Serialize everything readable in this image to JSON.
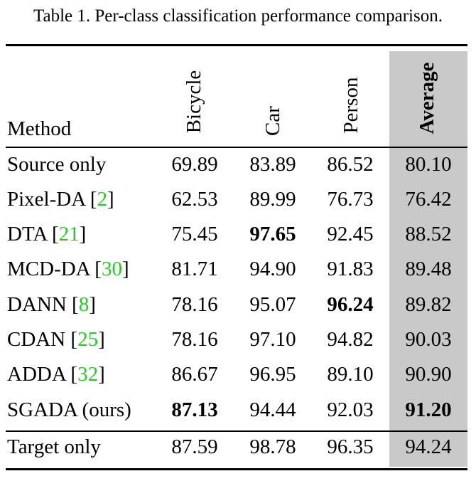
{
  "caption": "Table 1. Per-class classification performance comparison.",
  "headers": {
    "method": "Method",
    "bicycle": "Bicycle",
    "car": "Car",
    "person": "Person",
    "average": "Average"
  },
  "rows": [
    {
      "name": "Source only",
      "ref": "",
      "bicycle": "69.89",
      "car": "83.89",
      "person": "86.52",
      "average": "80.10"
    },
    {
      "name": "Pixel-DA",
      "ref": "2",
      "bicycle": "62.53",
      "car": "89.99",
      "person": "76.73",
      "average": "76.42"
    },
    {
      "name": "DTA",
      "ref": "21",
      "bicycle": "75.45",
      "car": "97.65",
      "person": "92.45",
      "average": "88.52"
    },
    {
      "name": "MCD-DA",
      "ref": "30",
      "bicycle": "81.71",
      "car": "94.90",
      "person": "91.83",
      "average": "89.48"
    },
    {
      "name": "DANN",
      "ref": "8",
      "bicycle": "78.16",
      "car": "95.07",
      "person": "96.24",
      "average": "89.82"
    },
    {
      "name": "CDAN",
      "ref": "25",
      "bicycle": "78.16",
      "car": "97.10",
      "person": "94.82",
      "average": "90.03"
    },
    {
      "name": "ADDA",
      "ref": "32",
      "bicycle": "86.67",
      "car": "96.95",
      "person": "89.10",
      "average": "90.90"
    },
    {
      "name": "SGADA (ours)",
      "ref": "",
      "bicycle": "87.13",
      "car": "94.44",
      "person": "92.03",
      "average": "91.20"
    },
    {
      "name": "Target only",
      "ref": "",
      "bicycle": "87.59",
      "car": "98.78",
      "person": "96.35",
      "average": "94.24"
    }
  ],
  "colors": {
    "citation": "#22cc22",
    "average_column_bg": "#c9c9c9"
  }
}
